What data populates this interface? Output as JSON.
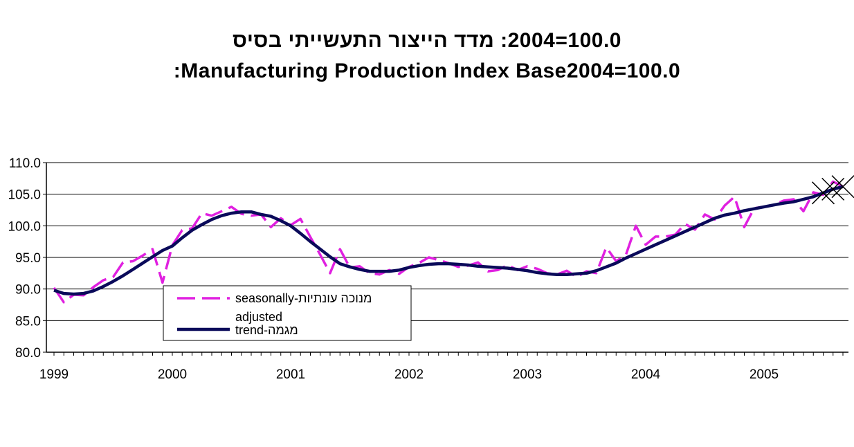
{
  "chart_data": {
    "type": "line",
    "title": "100.0=2004: מדד הייצור התעשייתי בסיס",
    "subtitle": ":Manufacturing Production Index Base2004=100.0",
    "xlabel": "",
    "ylabel": "",
    "ylim": [
      80,
      110
    ],
    "xlim": [
      1999,
      2005.83
    ],
    "y_ticks": [
      "80.0",
      "85.0",
      "90.0",
      "95.0",
      "100.0",
      "105.0",
      "110.0"
    ],
    "x_ticks": [
      "1999",
      "2000",
      "2001",
      "2002",
      "2003",
      "2004",
      "2005"
    ],
    "grid": "horizontal",
    "legend_position": "bottom-left",
    "legend_entries": [
      "seasonally-מנוכה עונתיות",
      "adjusted",
      "trend-מגמה"
    ],
    "series": [
      {
        "name": "seasonally-מנוכה עונתיות adjusted",
        "color": "#e020e0",
        "style": "dashed",
        "x": [
          1999.0,
          1999.083,
          1999.167,
          1999.25,
          1999.333,
          1999.417,
          1999.5,
          1999.583,
          1999.667,
          1999.75,
          1999.833,
          1999.917,
          2000.0,
          2000.083,
          2000.167,
          2000.25,
          2000.333,
          2000.417,
          2000.5,
          2000.583,
          2000.667,
          2000.75,
          2000.833,
          2000.917,
          2001.0,
          2001.083,
          2001.167,
          2001.25,
          2001.333,
          2001.417,
          2001.5,
          2001.583,
          2001.667,
          2001.75,
          2001.833,
          2001.917,
          2002.0,
          2002.083,
          2002.167,
          2002.25,
          2002.333,
          2002.417,
          2002.5,
          2002.583,
          2002.667,
          2002.75,
          2002.833,
          2002.917,
          2003.0,
          2003.083,
          2003.167,
          2003.25,
          2003.333,
          2003.417,
          2003.5,
          2003.583,
          2003.667,
          2003.75,
          2003.833,
          2003.917,
          2004.0,
          2004.083,
          2004.167,
          2004.25,
          2004.333,
          2004.417,
          2004.5,
          2004.583,
          2004.667,
          2004.75,
          2004.833,
          2004.917,
          2005.0,
          2005.083,
          2005.167,
          2005.25,
          2005.333,
          2005.417,
          2005.5,
          2005.583,
          2005.667
        ],
        "values": [
          90.2,
          87.9,
          89.1,
          89.0,
          90.3,
          91.4,
          91.9,
          94.2,
          94.4,
          95.3,
          96.3,
          91.0,
          96.9,
          99.3,
          99.6,
          102.0,
          101.6,
          102.3,
          103.0,
          101.9,
          101.6,
          101.8,
          99.8,
          101.2,
          100.1,
          101.1,
          98.2,
          95.4,
          92.5,
          96.3,
          93.4,
          93.6,
          92.5,
          92.3,
          93.0,
          92.4,
          93.5,
          94.1,
          95.0,
          94.6,
          94.1,
          93.5,
          93.7,
          94.2,
          92.8,
          93.0,
          93.8,
          93.0,
          93.6,
          93.2,
          92.5,
          92.3,
          92.9,
          91.9,
          92.8,
          92.5,
          96.6,
          94.4,
          95.4,
          100.0,
          97.0,
          98.3,
          98.3,
          98.6,
          100.3,
          99.4,
          101.8,
          101.0,
          103.2,
          104.6,
          99.8,
          102.8,
          103.0,
          103.3,
          104.0,
          104.2,
          102.3,
          105.3,
          104.9,
          107.0,
          106.2
        ]
      },
      {
        "name": "trend-מגמה",
        "color": "#0a0a5a",
        "style": "solid",
        "x": [
          1999.0,
          1999.083,
          1999.167,
          1999.25,
          1999.333,
          1999.417,
          1999.5,
          1999.583,
          1999.667,
          1999.75,
          1999.833,
          1999.917,
          2000.0,
          2000.083,
          2000.167,
          2000.25,
          2000.333,
          2000.417,
          2000.5,
          2000.583,
          2000.667,
          2000.75,
          2000.833,
          2000.917,
          2001.0,
          2001.083,
          2001.167,
          2001.25,
          2001.333,
          2001.417,
          2001.5,
          2001.583,
          2001.667,
          2001.75,
          2001.833,
          2001.917,
          2002.0,
          2002.083,
          2002.167,
          2002.25,
          2002.333,
          2002.417,
          2002.5,
          2002.583,
          2002.667,
          2002.75,
          2002.833,
          2002.917,
          2003.0,
          2003.083,
          2003.167,
          2003.25,
          2003.333,
          2003.417,
          2003.5,
          2003.583,
          2003.667,
          2003.75,
          2003.833,
          2003.917,
          2004.0,
          2004.083,
          2004.167,
          2004.25,
          2004.333,
          2004.417,
          2004.5,
          2004.583,
          2004.667,
          2004.75,
          2004.833,
          2004.917,
          2005.0,
          2005.083,
          2005.167,
          2005.25,
          2005.333,
          2005.417,
          2005.5,
          2005.583,
          2005.667
        ],
        "values": [
          89.8,
          89.3,
          89.2,
          89.3,
          89.7,
          90.4,
          91.2,
          92.1,
          93.1,
          94.1,
          95.1,
          96.1,
          96.8,
          98.1,
          99.3,
          100.2,
          101.0,
          101.6,
          102.0,
          102.2,
          102.2,
          101.8,
          101.5,
          100.8,
          100.0,
          98.8,
          97.5,
          96.3,
          95.1,
          94.0,
          93.5,
          93.1,
          92.8,
          92.8,
          92.8,
          93.0,
          93.4,
          93.7,
          93.9,
          94.0,
          94.0,
          93.9,
          93.8,
          93.6,
          93.5,
          93.4,
          93.3,
          93.1,
          92.9,
          92.6,
          92.4,
          92.3,
          92.3,
          92.4,
          92.5,
          92.9,
          93.5,
          94.1,
          94.9,
          95.6,
          96.3,
          97.0,
          97.7,
          98.4,
          99.1,
          99.8,
          100.5,
          101.2,
          101.7,
          102.0,
          102.4,
          102.7,
          103.0,
          103.3,
          103.6,
          103.8,
          104.2,
          104.6,
          105.2,
          105.8,
          106.2
        ]
      },
      {
        "name": "",
        "color": "#000000",
        "style": "markers",
        "marker": "x",
        "x": [
          2005.5,
          2005.583,
          2005.667
        ],
        "values": [
          105.2,
          105.8,
          106.2
        ]
      }
    ]
  }
}
